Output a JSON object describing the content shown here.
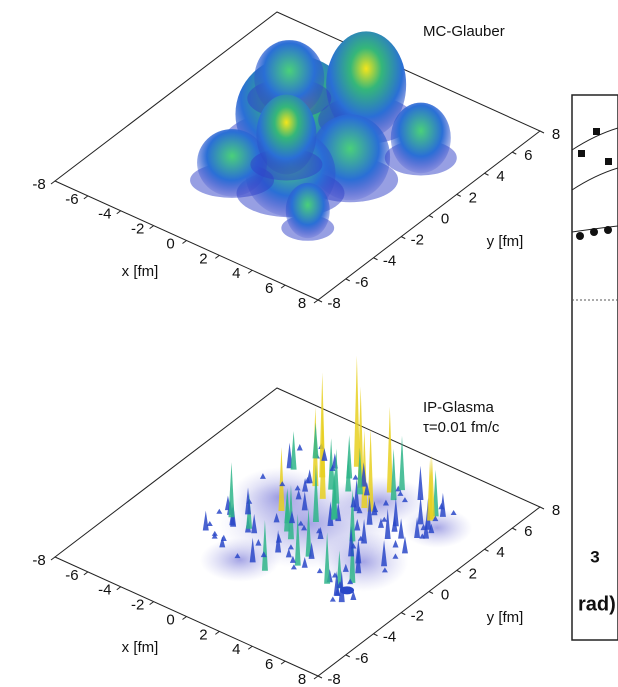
{
  "panels": [
    {
      "label": [
        "MC-Glauber"
      ],
      "x_axis_title": "x [fm]",
      "y_axis_title": "y [fm]",
      "x_ticks": [
        "-8",
        "-6",
        "-4",
        "-2",
        "0",
        "2",
        "4",
        "6",
        "8"
      ],
      "y_ticks": [
        "-8",
        "-6",
        "-4",
        "-2",
        "0",
        "2",
        "4",
        "6",
        "8"
      ]
    },
    {
      "label": [
        "IP-Glasma",
        "τ=0.01 fm/c"
      ],
      "x_axis_title": "x [fm]",
      "y_axis_title": "y [fm]",
      "x_ticks": [
        "-8",
        "-6",
        "-4",
        "-2",
        "0",
        "2",
        "4",
        "6",
        "8"
      ],
      "y_ticks": [
        "-8",
        "-6",
        "-4",
        "-2",
        "0",
        "2",
        "4",
        "6",
        "8"
      ]
    }
  ],
  "side_fragment": {
    "tick": "3",
    "axis_label": "rad)"
  }
}
